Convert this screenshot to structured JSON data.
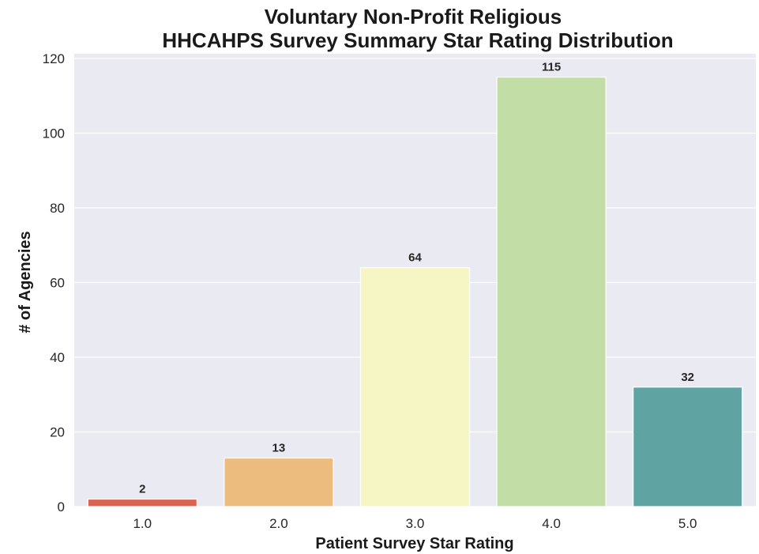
{
  "chart_data": {
    "type": "bar",
    "title": "Voluntary Non-Profit Religious",
    "subtitle": "HHCAHPS Survey Summary Star Rating Distribution",
    "xlabel": "Patient Survey Star Rating",
    "ylabel": "# of Agencies",
    "categories": [
      "1.0",
      "2.0",
      "3.0",
      "4.0",
      "5.0"
    ],
    "values": [
      2,
      13,
      64,
      115,
      32
    ],
    "data_labels": [
      "2",
      "13",
      "64",
      "115",
      "32"
    ],
    "bar_colors": [
      "#d9634f",
      "#ecbc7e",
      "#f6f5c4",
      "#c2dda6",
      "#5fa4a3"
    ],
    "ylim": [
      0,
      120
    ],
    "yticks": [
      "0",
      "20",
      "40",
      "60",
      "80",
      "100",
      "120"
    ],
    "grid": true,
    "plot_background": "#eaeaf2"
  }
}
